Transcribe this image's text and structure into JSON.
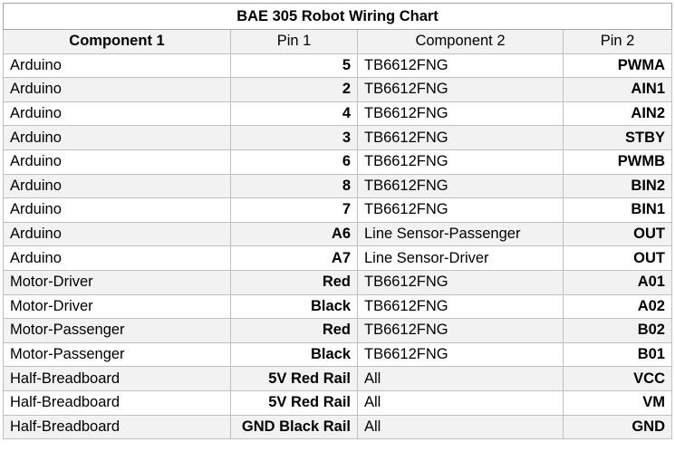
{
  "title": "BAE 305 Robot Wiring Chart",
  "headers": {
    "component1": "Component 1",
    "pin1": "Pin 1",
    "component2": "Component 2",
    "pin2": "Pin 2"
  },
  "rows": [
    {
      "component1": "Arduino",
      "pin1": "5",
      "component2": "TB6612FNG",
      "pin2": "PWMA"
    },
    {
      "component1": "Arduino",
      "pin1": "2",
      "component2": "TB6612FNG",
      "pin2": "AIN1"
    },
    {
      "component1": "Arduino",
      "pin1": "4",
      "component2": "TB6612FNG",
      "pin2": "AIN2"
    },
    {
      "component1": "Arduino",
      "pin1": "3",
      "component2": "TB6612FNG",
      "pin2": "STBY"
    },
    {
      "component1": "Arduino",
      "pin1": "6",
      "component2": "TB6612FNG",
      "pin2": "PWMB"
    },
    {
      "component1": "Arduino",
      "pin1": "8",
      "component2": "TB6612FNG",
      "pin2": "BIN2"
    },
    {
      "component1": "Arduino",
      "pin1": "7",
      "component2": "TB6612FNG",
      "pin2": "BIN1"
    },
    {
      "component1": "Arduino",
      "pin1": "A6",
      "component2": "Line Sensor-Passenger",
      "pin2": "OUT"
    },
    {
      "component1": "Arduino",
      "pin1": "A7",
      "component2": "Line Sensor-Driver",
      "pin2": "OUT"
    },
    {
      "component1": "Motor-Driver",
      "pin1": "Red",
      "component2": "TB6612FNG",
      "pin2": "A01"
    },
    {
      "component1": "Motor-Driver",
      "pin1": "Black",
      "component2": "TB6612FNG",
      "pin2": "A02"
    },
    {
      "component1": "Motor-Passenger",
      "pin1": "Red",
      "component2": "TB6612FNG",
      "pin2": "B02"
    },
    {
      "component1": "Motor-Passenger",
      "pin1": "Black",
      "component2": "TB6612FNG",
      "pin2": "B01"
    },
    {
      "component1": "Half-Breadboard",
      "pin1": "5V Red Rail",
      "component2": "All",
      "pin2": "VCC"
    },
    {
      "component1": "Half-Breadboard",
      "pin1": "5V Red Rail",
      "component2": "All",
      "pin2": "VM"
    },
    {
      "component1": "Half-Breadboard",
      "pin1": "GND Black Rail",
      "component2": "All",
      "pin2": "GND"
    }
  ]
}
